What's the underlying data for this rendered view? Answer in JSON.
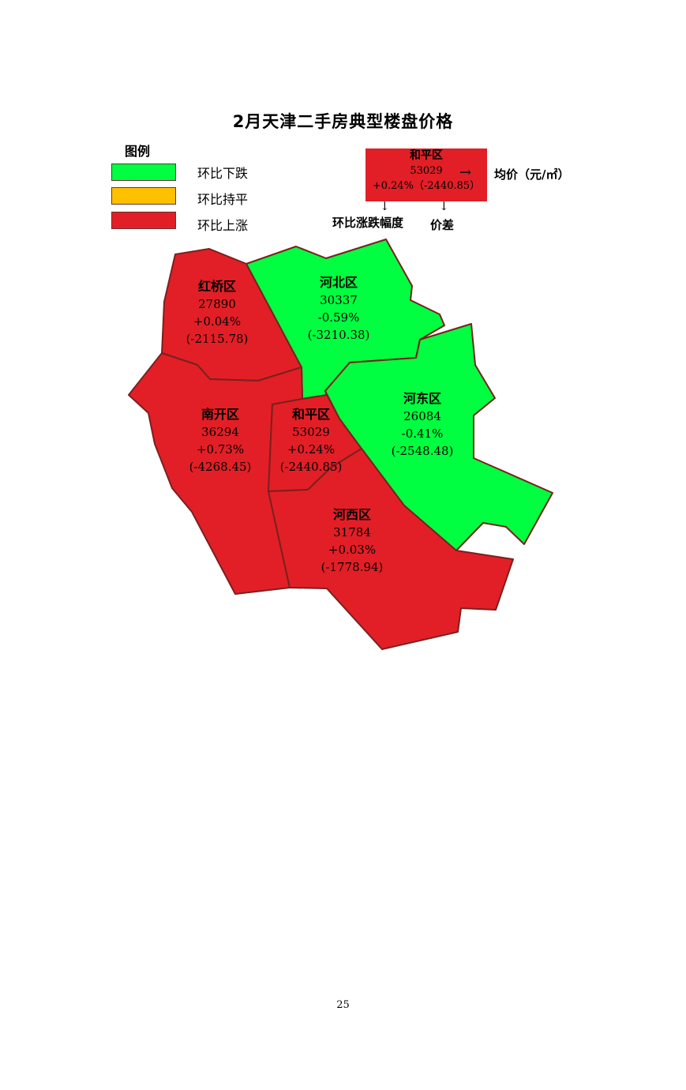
{
  "title": "2月天津二手房典型楼盘价格",
  "legend": {
    "title": "图例",
    "items": [
      {
        "label": "环比下跌",
        "color": "#00ff40"
      },
      {
        "label": "环比持平",
        "color": "#ffc000"
      },
      {
        "label": "环比上涨",
        "color": "#e21f26"
      }
    ]
  },
  "key": {
    "name": "和平区",
    "price": "53029",
    "change": "+0.24%（-2440.85）",
    "price_note": "均价（元/㎡）",
    "change_note": "环比涨跌幅度",
    "diff_note": "价差",
    "arrow_right": "→",
    "arrow_down": "↓"
  },
  "districts": [
    {
      "name": "红桥区",
      "price": "27890",
      "change": "+0.04%",
      "diff": "(-2115.78)",
      "trend": "up"
    },
    {
      "name": "河北区",
      "price": "30337",
      "change": "-0.59%",
      "diff": "(-3210.38)",
      "trend": "down"
    },
    {
      "name": "南开区",
      "price": "36294",
      "change": "+0.73%",
      "diff": "(-4268.45)",
      "trend": "up"
    },
    {
      "name": "和平区",
      "price": "53029",
      "change": "+0.24%",
      "diff": "(-2440.85)",
      "trend": "up"
    },
    {
      "name": "河东区",
      "price": "26084",
      "change": "-0.41%",
      "diff": "(-2548.48)",
      "trend": "down"
    },
    {
      "name": "河西区",
      "price": "31784",
      "change": "+0.03%",
      "diff": "(-1778.94)",
      "trend": "up"
    }
  ],
  "colors": {
    "up": "#e21f26",
    "down": "#00ff40",
    "flat": "#ffc000",
    "border": "#7a2020"
  },
  "page_number": "25"
}
